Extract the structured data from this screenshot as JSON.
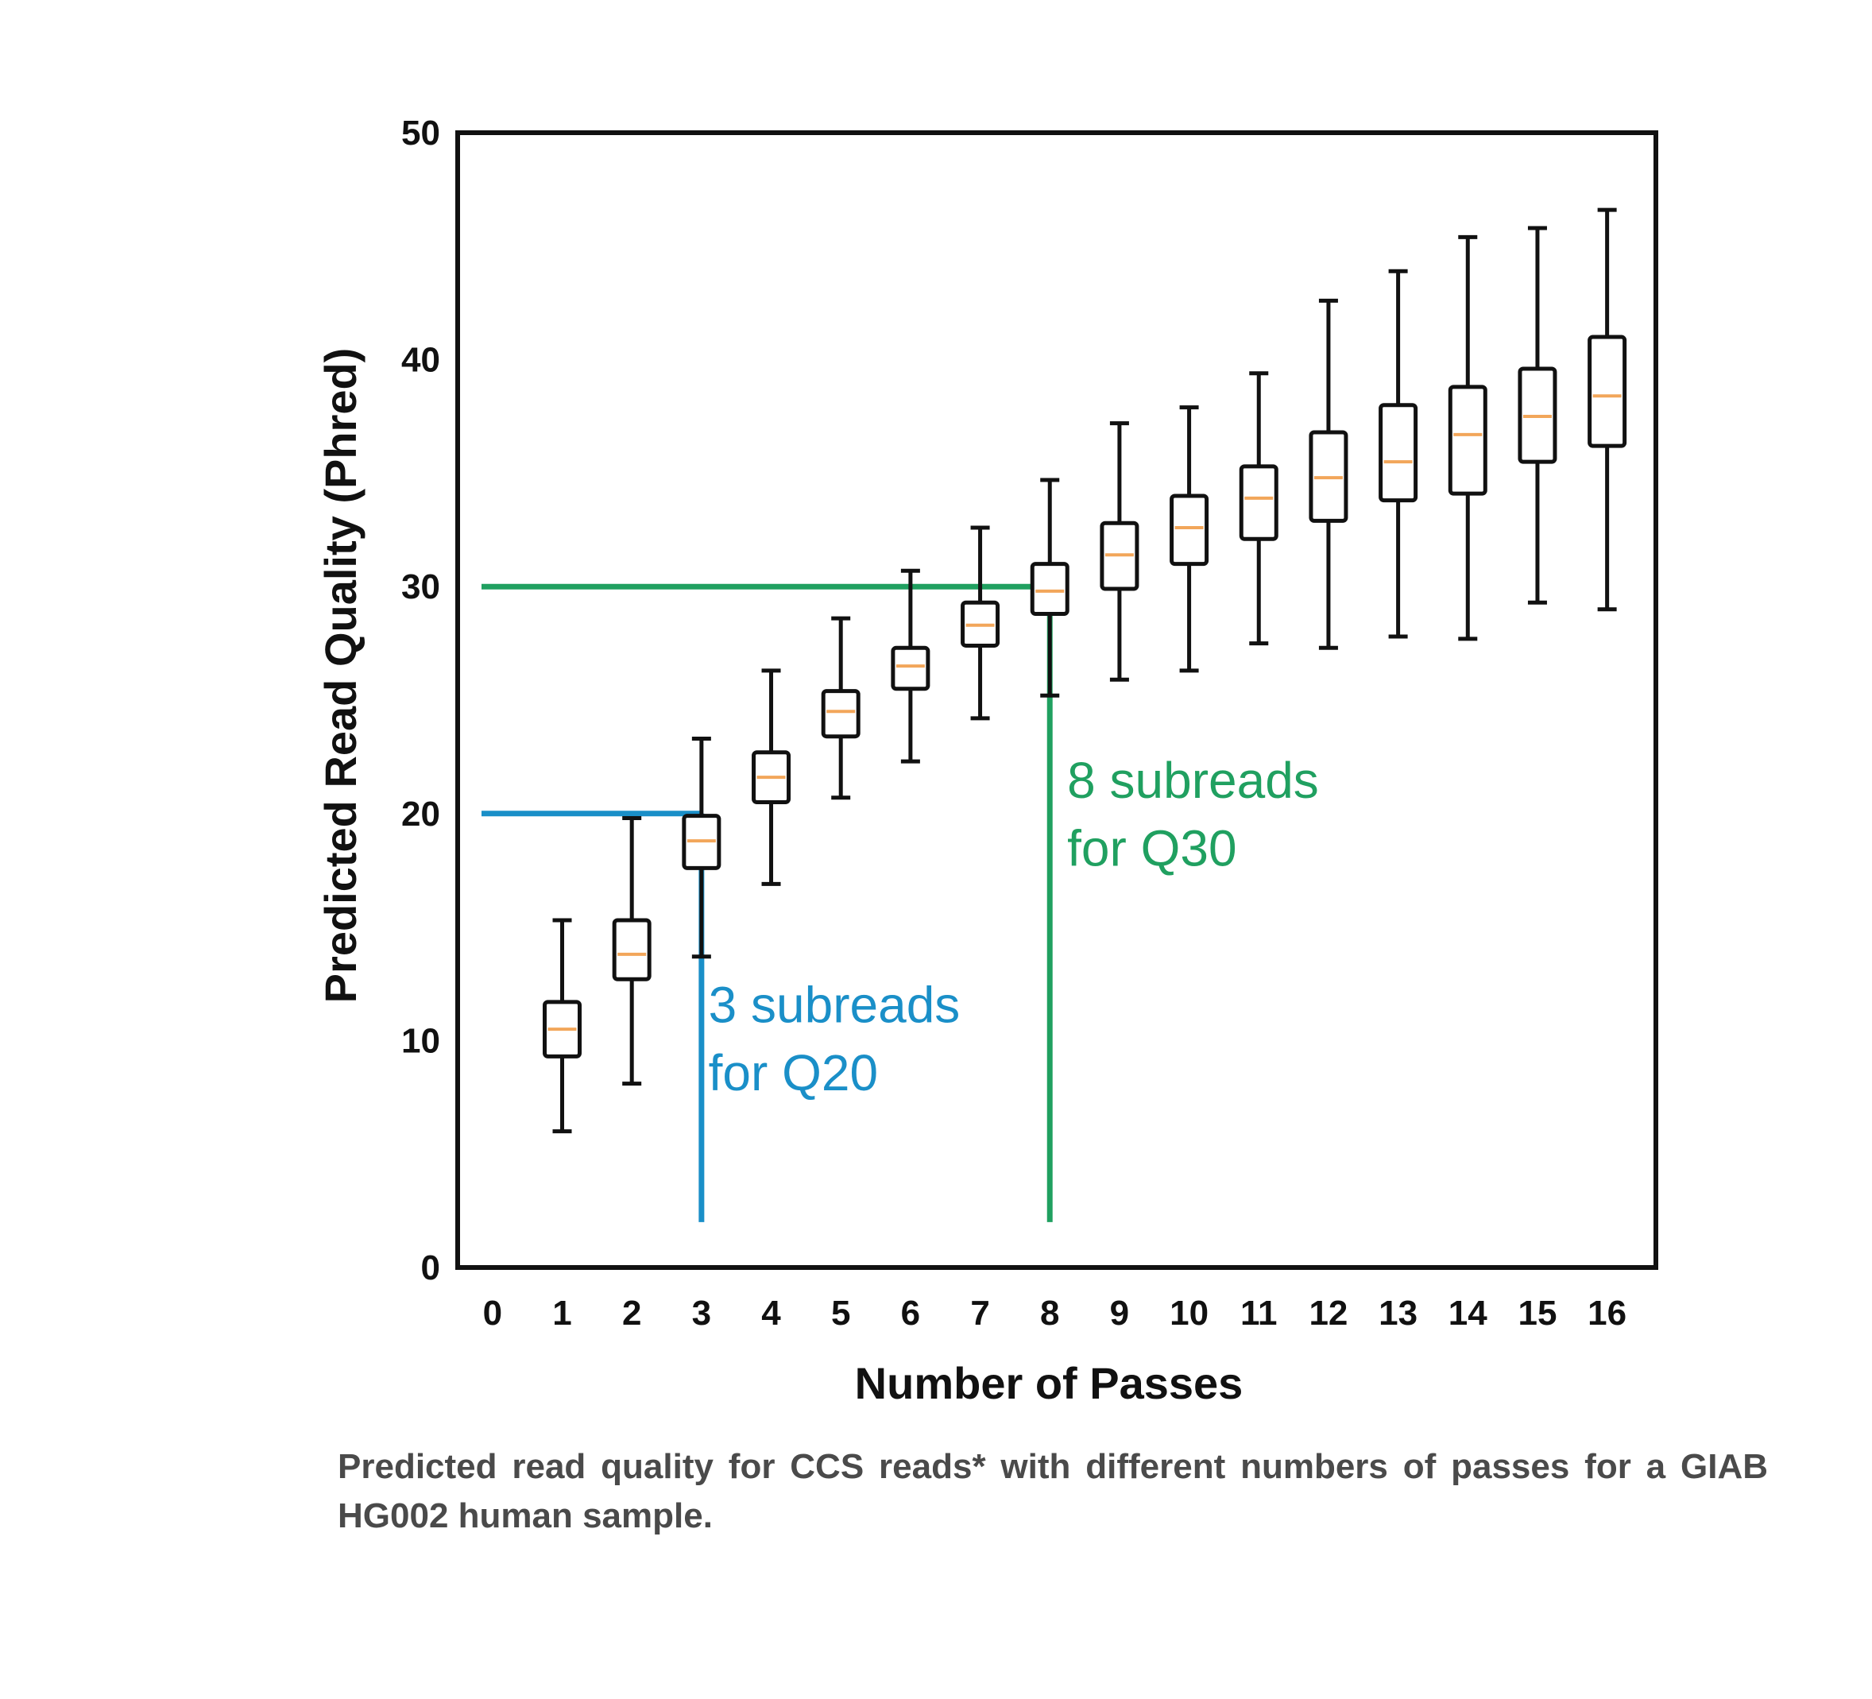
{
  "chart_data": {
    "type": "box",
    "title": "",
    "xlabel": "Number of Passes",
    "ylabel": "Predicted Read Quality (Phred)",
    "xlim": [
      -0.5,
      16.7
    ],
    "ylim": [
      0,
      50
    ],
    "xticks": [
      "0",
      "1",
      "2",
      "3",
      "4",
      "5",
      "6",
      "7",
      "8",
      "9",
      "10",
      "11",
      "12",
      "13",
      "14",
      "15",
      "16"
    ],
    "yticks": [
      0,
      10,
      20,
      30,
      40,
      50
    ],
    "grid": false,
    "series": [
      {
        "name": "Predicted read quality",
        "boxes": [
          {
            "x": 1,
            "whisker_low": 6.0,
            "q1": 9.3,
            "median": 10.5,
            "q3": 11.7,
            "whisker_high": 15.3
          },
          {
            "x": 2,
            "whisker_low": 8.1,
            "q1": 12.7,
            "median": 13.8,
            "q3": 15.3,
            "whisker_high": 19.8
          },
          {
            "x": 3,
            "whisker_low": 13.7,
            "q1": 17.6,
            "median": 18.8,
            "q3": 19.9,
            "whisker_high": 23.3
          },
          {
            "x": 4,
            "whisker_low": 16.9,
            "q1": 20.5,
            "median": 21.6,
            "q3": 22.7,
            "whisker_high": 26.3
          },
          {
            "x": 5,
            "whisker_low": 20.7,
            "q1": 23.4,
            "median": 24.5,
            "q3": 25.4,
            "whisker_high": 28.6
          },
          {
            "x": 6,
            "whisker_low": 22.3,
            "q1": 25.5,
            "median": 26.5,
            "q3": 27.3,
            "whisker_high": 30.7
          },
          {
            "x": 7,
            "whisker_low": 24.2,
            "q1": 27.4,
            "median": 28.3,
            "q3": 29.3,
            "whisker_high": 32.6
          },
          {
            "x": 8,
            "whisker_low": 25.2,
            "q1": 28.8,
            "median": 29.8,
            "q3": 31.0,
            "whisker_high": 34.7
          },
          {
            "x": 9,
            "whisker_low": 25.9,
            "q1": 29.9,
            "median": 31.4,
            "q3": 32.8,
            "whisker_high": 37.2
          },
          {
            "x": 10,
            "whisker_low": 26.3,
            "q1": 31.0,
            "median": 32.6,
            "q3": 34.0,
            "whisker_high": 37.9
          },
          {
            "x": 11,
            "whisker_low": 27.5,
            "q1": 32.1,
            "median": 33.9,
            "q3": 35.3,
            "whisker_high": 39.4
          },
          {
            "x": 12,
            "whisker_low": 27.3,
            "q1": 32.9,
            "median": 34.8,
            "q3": 36.8,
            "whisker_high": 42.6
          },
          {
            "x": 13,
            "whisker_low": 27.8,
            "q1": 33.8,
            "median": 35.5,
            "q3": 38.0,
            "whisker_high": 43.9
          },
          {
            "x": 14,
            "whisker_low": 27.7,
            "q1": 34.1,
            "median": 36.7,
            "q3": 38.8,
            "whisker_high": 45.4
          },
          {
            "x": 15,
            "whisker_low": 29.3,
            "q1": 35.5,
            "median": 37.5,
            "q3": 39.6,
            "whisker_high": 45.8
          },
          {
            "x": 16,
            "whisker_low": 29.0,
            "q1": 36.2,
            "median": 38.4,
            "q3": 41.0,
            "whisker_high": 46.6
          }
        ]
      }
    ],
    "reference_lines": [
      {
        "name": "q20",
        "color": "#1a8fc8",
        "y": 20,
        "x": 3,
        "y_end": 2.0,
        "label_lines": [
          "3 subreads",
          "for Q20"
        ],
        "label_at": [
          3.1,
          10.8,
          7.8
        ]
      },
      {
        "name": "q30",
        "color": "#20a060",
        "y": 30,
        "x": 8,
        "y_end": 2.0,
        "label_lines": [
          "8 subreads",
          "for Q30"
        ],
        "label_at": [
          8.25,
          20.7,
          17.7
        ]
      }
    ]
  },
  "caption": "Predicted read quality for CCS reads* with different numbers of passes for a GIAB HG002 human sample.",
  "colors": {
    "box": "#111111",
    "median": "#f2a65a",
    "axis": "#111111"
  }
}
